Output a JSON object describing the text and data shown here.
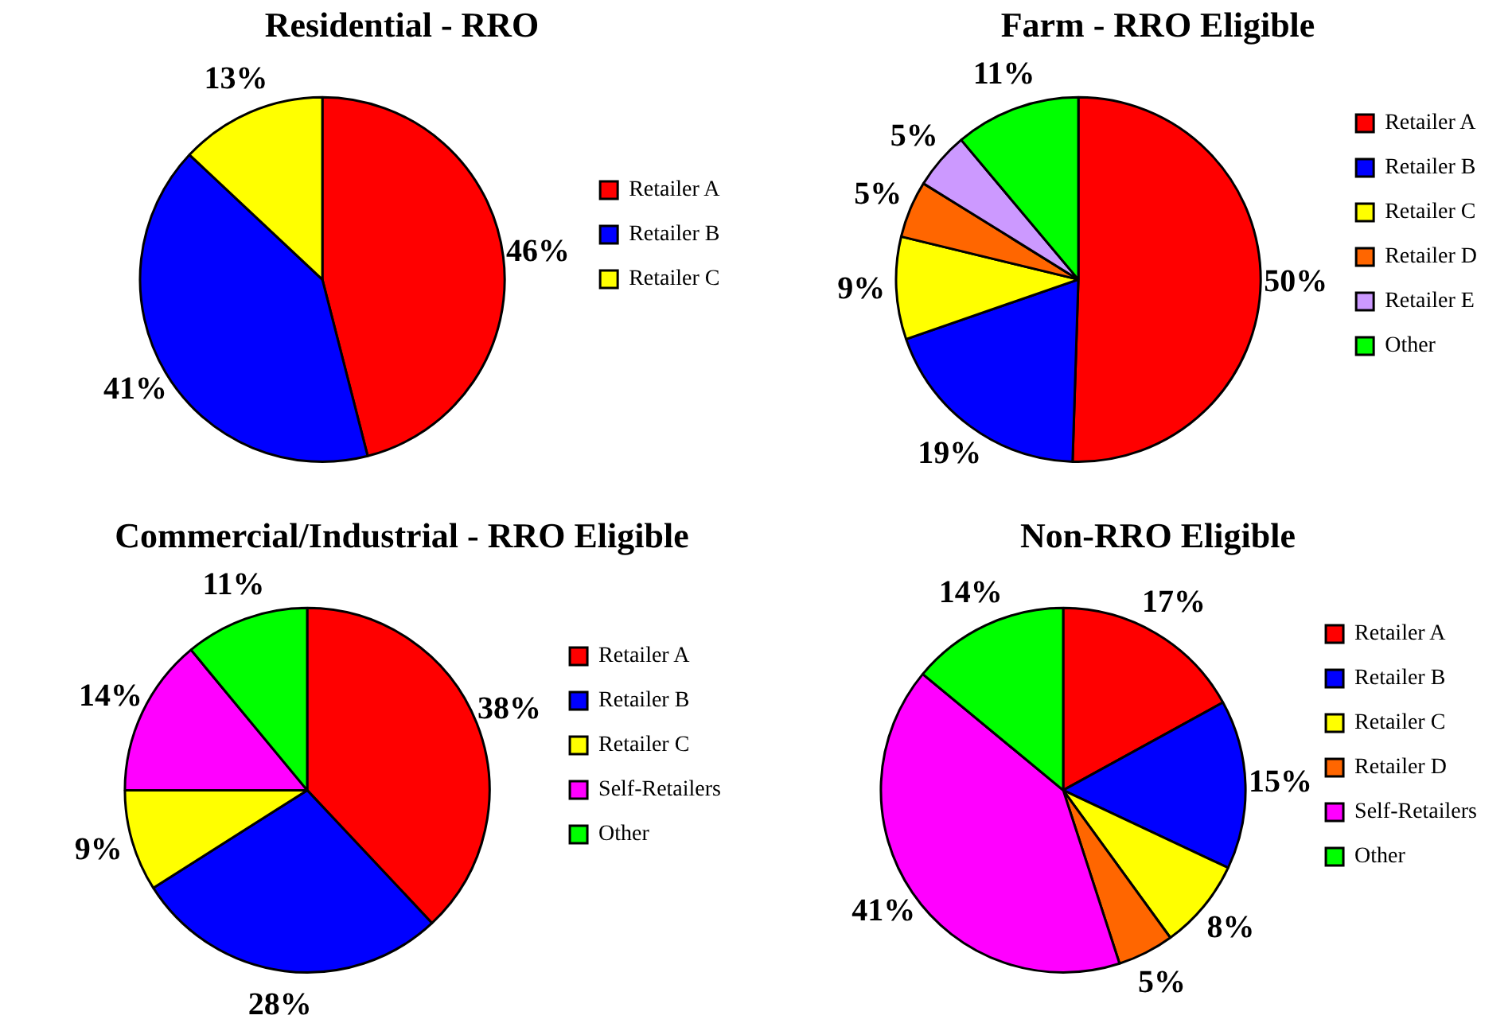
{
  "chart_data": [
    {
      "type": "pie",
      "title": "Residential - RRO",
      "categories": [
        "Retailer A",
        "Retailer B",
        "Retailer C"
      ],
      "values": [
        46,
        41,
        13
      ],
      "colors": [
        "#ff0000",
        "#0000ff",
        "#ffff00"
      ],
      "value_labels": [
        "46%",
        "41%",
        "13%"
      ],
      "legend": "right"
    },
    {
      "type": "pie",
      "title": "Farm - RRO Eligible",
      "categories": [
        "Retailer A",
        "Retailer B",
        "Retailer C",
        "Retailer D",
        "Retailer E",
        "Other"
      ],
      "values": [
        50,
        19,
        9,
        5,
        5,
        11
      ],
      "colors": [
        "#ff0000",
        "#0000ff",
        "#ffff00",
        "#ff6600",
        "#cc99ff",
        "#00ff00"
      ],
      "value_labels": [
        "50%",
        "19%",
        "9%",
        "5%",
        "5%",
        "11%"
      ],
      "legend": "right"
    },
    {
      "type": "pie",
      "title": "Commercial/Industrial - RRO Eligible",
      "categories": [
        "Retailer A",
        "Retailer B",
        "Retailer C",
        "Self-Retailers",
        "Other"
      ],
      "values": [
        38,
        28,
        9,
        14,
        11
      ],
      "colors": [
        "#ff0000",
        "#0000ff",
        "#ffff00",
        "#ff00ff",
        "#00ff00"
      ],
      "value_labels": [
        "38%",
        "28%",
        "9%",
        "14%",
        "11%"
      ],
      "legend": "right"
    },
    {
      "type": "pie",
      "title": "Non-RRO Eligible",
      "categories": [
        "Retailer A",
        "Retailer B",
        "Retailer C",
        "Retailer D",
        "Self-Retailers",
        "Other"
      ],
      "values": [
        17,
        15,
        8,
        5,
        41,
        14
      ],
      "colors": [
        "#ff0000",
        "#0000ff",
        "#ffff00",
        "#ff6600",
        "#ff00ff",
        "#00ff00"
      ],
      "value_labels": [
        "17%",
        "15%",
        "8%",
        "5%",
        "41%",
        "14%"
      ],
      "legend": "right"
    }
  ]
}
